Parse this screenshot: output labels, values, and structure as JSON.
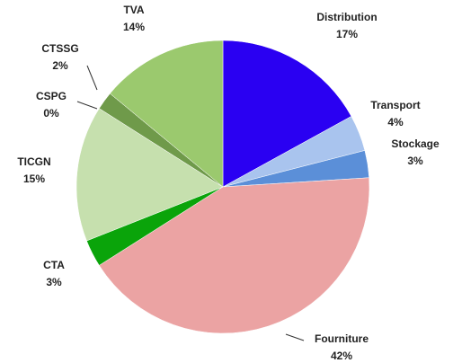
{
  "chart_data": {
    "type": "pie",
    "categories": [
      "Distribution",
      "Transport",
      "Stockage",
      "Fourniture",
      "CTA",
      "TICGN",
      "CSPG",
      "CTSSG",
      "TVA"
    ],
    "values": [
      17,
      4,
      3,
      42,
      3,
      15,
      0,
      2,
      14
    ],
    "value_labels": [
      "17%",
      "4%",
      "3%",
      "42%",
      "3%",
      "15%",
      "0%",
      "2%",
      "14%"
    ],
    "colors": [
      "#2a00f2",
      "#a9c4ee",
      "#5b8fd8",
      "#eba3a3",
      "#0aa40a",
      "#c6e0ae",
      "#c6e0ae",
      "#6f9a4a",
      "#9bc96e"
    ]
  }
}
